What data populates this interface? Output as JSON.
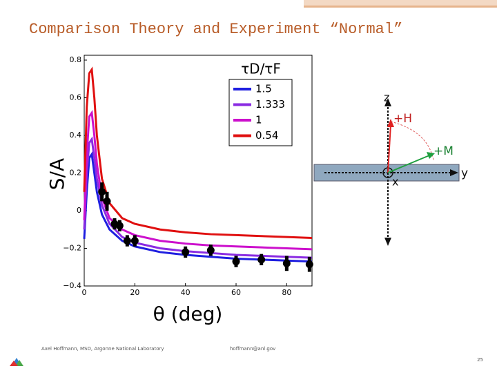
{
  "title": "Comparison Theory and Experiment “Normal”",
  "chart_data": [
    {
      "type": "line",
      "y_label": "S/A",
      "x_label": "θ (deg)",
      "legend_title": "τD/τF",
      "x": [
        0,
        1,
        2,
        3,
        4,
        5,
        7,
        10,
        15,
        20,
        30,
        40,
        50,
        60,
        70,
        80,
        90
      ],
      "series": [
        {
          "name": "1.5",
          "color": "#1f1fe0",
          "values": [
            -0.15,
            0.1,
            0.28,
            0.3,
            0.2,
            0.1,
            -0.02,
            -0.1,
            -0.16,
            -0.19,
            -0.22,
            -0.235,
            -0.245,
            -0.255,
            -0.26,
            -0.265,
            -0.27
          ]
        },
        {
          "name": "1.333",
          "color": "#8a2be2",
          "values": [
            -0.1,
            0.2,
            0.36,
            0.38,
            0.28,
            0.17,
            0.03,
            -0.07,
            -0.14,
            -0.17,
            -0.2,
            -0.215,
            -0.225,
            -0.235,
            -0.24,
            -0.245,
            -0.25
          ]
        },
        {
          "name": "1",
          "color": "#cc10cc",
          "values": [
            -0.05,
            0.3,
            0.5,
            0.52,
            0.4,
            0.25,
            0.07,
            -0.04,
            -0.1,
            -0.13,
            -0.16,
            -0.175,
            -0.185,
            -0.19,
            -0.195,
            -0.2,
            -0.205
          ]
        },
        {
          "name": "0.54",
          "color": "#e01010",
          "values": [
            0.1,
            0.55,
            0.73,
            0.75,
            0.6,
            0.4,
            0.17,
            0.04,
            -0.04,
            -0.07,
            -0.1,
            -0.115,
            -0.125,
            -0.13,
            -0.135,
            -0.14,
            -0.145
          ]
        }
      ],
      "xlim": [
        0,
        90
      ],
      "ylim": [
        -0.4,
        0.8
      ],
      "xticks": [
        0,
        20,
        40,
        60,
        80
      ],
      "yticks": [
        {
          "value": -0.4,
          "label": "−0.4"
        },
        {
          "value": -0.2,
          "label": "−0.2"
        },
        0,
        0.2,
        0.4,
        0.6,
        0.8
      ]
    },
    {
      "type": "scatter",
      "color": "#000000",
      "x": [
        7,
        9,
        12,
        14,
        17,
        20,
        40,
        50,
        60,
        70,
        80,
        89
      ],
      "values": [
        0.1,
        0.05,
        -0.07,
        -0.08,
        -0.16,
        -0.16,
        -0.22,
        -0.21,
        -0.27,
        -0.26,
        -0.28,
        -0.285
      ],
      "errors": [
        0.05,
        0.05,
        0.03,
        0.03,
        0.03,
        0.03,
        0.03,
        0.03,
        0.03,
        0.03,
        0.04,
        0.04
      ]
    }
  ],
  "diagram": {
    "z": "z",
    "h": "+H",
    "m": "+M",
    "y": "y",
    "x": "x"
  },
  "footer": {
    "author": "Axel Hoffmann, MSD, Argonne National Laboratory",
    "email": "hoffmann@anl.gov",
    "page": 25
  }
}
